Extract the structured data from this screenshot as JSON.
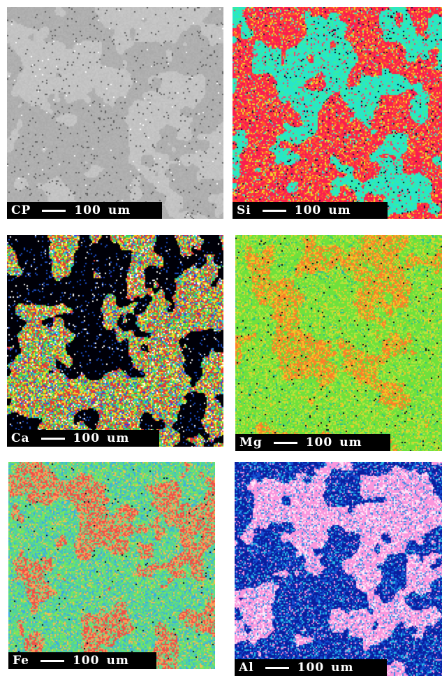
{
  "panels": [
    {
      "element": "CP",
      "scale_value": "100",
      "scale_unit": "um",
      "palette": "grayscale"
    },
    {
      "element": "Si",
      "scale_value": "100",
      "scale_unit": "um",
      "palette": "red-cyan"
    },
    {
      "element": "Ca",
      "scale_value": "100",
      "scale_unit": "um",
      "palette": "multicolor-with-black-voids"
    },
    {
      "element": "Mg",
      "scale_value": "100",
      "scale_unit": "um",
      "palette": "green-orange"
    },
    {
      "element": "Fe",
      "scale_value": "100",
      "scale_unit": "um",
      "palette": "green-teal-red"
    },
    {
      "element": "Al",
      "scale_value": "100",
      "scale_unit": "um",
      "palette": "blue-pink"
    }
  ]
}
